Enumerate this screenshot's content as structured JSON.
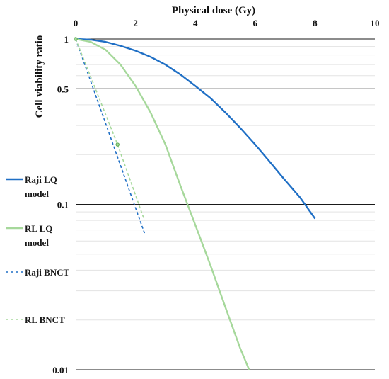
{
  "chart_data": {
    "type": "line",
    "xlabel": "Physical dose (Gy)",
    "ylabel": "Cell viability ratio",
    "xlim": [
      0,
      10
    ],
    "ylim": [
      0.01,
      1
    ],
    "y_scale": "log",
    "x_ticks": [
      "0",
      "2",
      "4",
      "6",
      "8",
      "10"
    ],
    "y_ticks": [
      {
        "value": 1,
        "label": "1"
      },
      {
        "value": 0.5,
        "label": "0.5"
      },
      {
        "value": 0.1,
        "label": "0.1"
      },
      {
        "value": 0.01,
        "label": "0.01"
      }
    ],
    "legend_position": "left",
    "series": [
      {
        "name": "Raji LQ model",
        "color": "#1f6fc5",
        "dash": "solid",
        "x": [
          0,
          0.5,
          1,
          1.5,
          2,
          2.5,
          3,
          3.5,
          4,
          4.5,
          5,
          5.5,
          6,
          6.5,
          7,
          7.5,
          8
        ],
        "y": [
          1.0,
          0.99,
          0.96,
          0.91,
          0.85,
          0.78,
          0.7,
          0.61,
          0.52,
          0.44,
          0.36,
          0.29,
          0.23,
          0.18,
          0.14,
          0.11,
          0.082
        ]
      },
      {
        "name": "RL LQ model",
        "color": "#a6d89b",
        "dash": "solid",
        "x": [
          0,
          0.5,
          1,
          1.5,
          2,
          2.5,
          3,
          3.5,
          4,
          4.5,
          5,
          5.5,
          5.8
        ],
        "y": [
          1.0,
          0.96,
          0.86,
          0.7,
          0.52,
          0.36,
          0.23,
          0.13,
          0.075,
          0.043,
          0.024,
          0.0135,
          0.01
        ]
      },
      {
        "name": "Raji BNCT",
        "color": "#1f6fc5",
        "dash": "dashed",
        "x": [
          0,
          2.3
        ],
        "y": [
          1.0,
          0.067
        ],
        "markers": false
      },
      {
        "name": "RL BNCT",
        "color": "#a6d89b",
        "dash": "dashed",
        "x": [
          0,
          1.4,
          2.3
        ],
        "y": [
          1.0,
          0.23,
          0.08
        ],
        "markers": true
      }
    ]
  }
}
